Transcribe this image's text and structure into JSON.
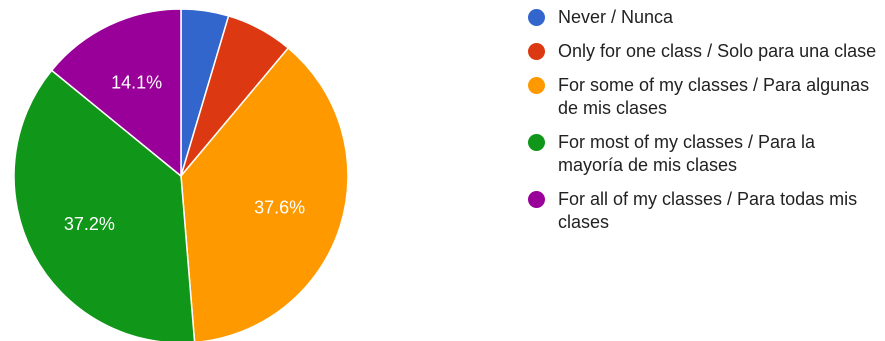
{
  "chart_data": {
    "type": "pie",
    "title": "",
    "start_angle_deg": 90,
    "direction": "clockwise",
    "slices": [
      {
        "label": "Never / Nunca",
        "value": 4.6,
        "display": "",
        "color": "#3366cc"
      },
      {
        "label": "Only for one class / Solo para una clase",
        "value": 6.5,
        "display": "",
        "color": "#dc3912"
      },
      {
        "label": "For some of my classes / Para algunas de mis clases",
        "value": 37.6,
        "display": "37.6%",
        "color": "#ff9900"
      },
      {
        "label": "For most of my classes / Para la mayoría de mis clases",
        "value": 37.2,
        "display": "37.2%",
        "color": "#109618"
      },
      {
        "label": "For all of my classes / Para todas mis clases",
        "value": 14.1,
        "display": "14.1%",
        "color": "#990099"
      }
    ],
    "legend_position": "right"
  }
}
